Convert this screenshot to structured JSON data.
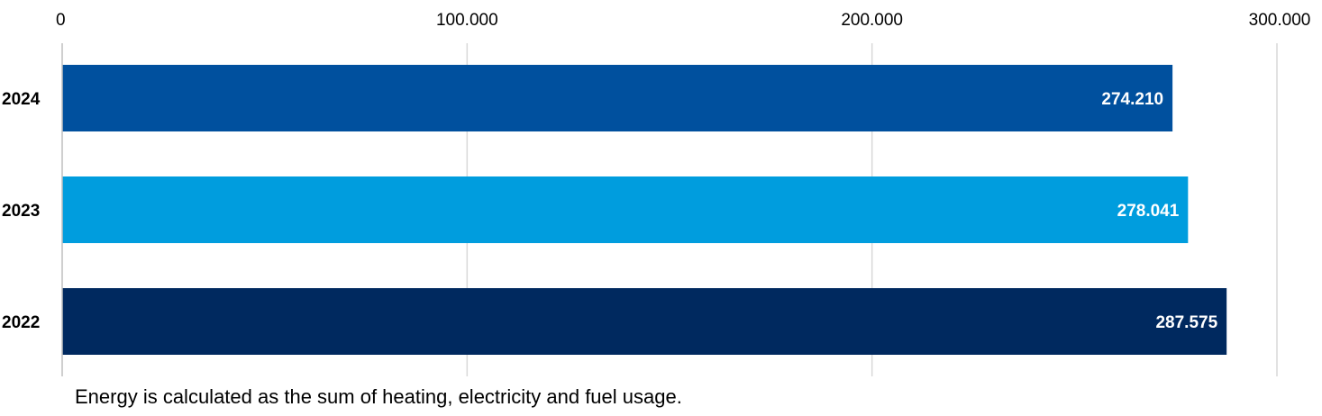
{
  "chart_data": {
    "type": "bar",
    "orientation": "horizontal",
    "categories": [
      "2024",
      "2023",
      "2022"
    ],
    "values": [
      274210,
      278041,
      287575
    ],
    "value_labels": [
      "274.210",
      "278.041",
      "287.575"
    ],
    "bar_colors": [
      "#00509E",
      "#009DDE",
      "#00295F"
    ],
    "x_ticks": [
      0,
      100000,
      200000,
      300000
    ],
    "x_tick_labels": [
      "0",
      "100.000",
      "200.000",
      "300.000"
    ],
    "xlim": [
      0,
      300000
    ],
    "x_axis_position": "top",
    "grid": true,
    "legend": "none",
    "title": "",
    "xlabel": "",
    "ylabel": ""
  },
  "footnote": "Energy is calculated as the sum of heating, electricity and fuel usage.",
  "colors": {
    "grid": "#D9D9D9",
    "axis": "#BFBFBF",
    "label_text": "#000000",
    "value_text": "#FFFFFF"
  }
}
